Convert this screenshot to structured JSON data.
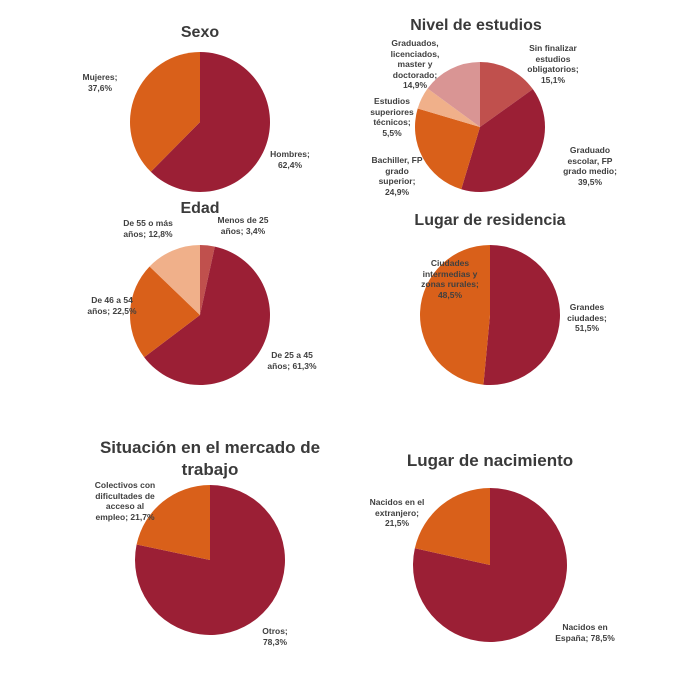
{
  "colors": {
    "dark_red": "#9b1f35",
    "orange": "#d9601a",
    "light_red": "#c0504d",
    "peach": "#f0b08a",
    "pink": "#d99594"
  },
  "chart_data": [
    {
      "type": "pie",
      "title": "Sexo",
      "start": "12 o'clock, clockwise",
      "slices": [
        {
          "label": "Hombres",
          "value": 62.4,
          "text": "Hombres; 62,4%",
          "color": "#9b1f35"
        },
        {
          "label": "Mujeres",
          "value": 37.6,
          "text": "Mujeres; 37,6%",
          "color": "#d9601a"
        }
      ]
    },
    {
      "type": "pie",
      "title": "Nivel de estudios",
      "start": "12 o'clock, clockwise",
      "slices": [
        {
          "label": "Sin finalizar estudios obligatorios",
          "value": 15.1,
          "text": "Sin finalizar estudios obligatorios; 15,1%",
          "color": "#c0504d"
        },
        {
          "label": "Graduado escolar, FP grado medio",
          "value": 39.5,
          "text": "Graduado escolar, FP grado medio; 39,5%",
          "color": "#9b1f35"
        },
        {
          "label": "Bachiller, FP grado superior",
          "value": 24.9,
          "text": "Bachiller, FP grado superior; 24,9%",
          "color": "#d9601a"
        },
        {
          "label": "Estudios superiores técnicos",
          "value": 5.5,
          "text": "Estudios superiores técnicos; 5,5%",
          "color": "#f0b08a"
        },
        {
          "label": "Graduados, licenciados, master y doctorado",
          "value": 14.9,
          "text": "Graduados, licenciados, master y doctorado; 14,9%",
          "color": "#d99594"
        }
      ]
    },
    {
      "type": "pie",
      "title": "Edad",
      "start": "12 o'clock, clockwise",
      "slices": [
        {
          "label": "Menos de 25 años",
          "value": 3.4,
          "text": "Menos de 25 años; 3,4%",
          "color": "#c0504d"
        },
        {
          "label": "De 25 a 45 años",
          "value": 61.3,
          "text": "De 25 a 45 años; 61,3%",
          "color": "#9b1f35"
        },
        {
          "label": "De 46 a 54 años",
          "value": 22.5,
          "text": "De 46 a 54 años; 22,5%",
          "color": "#d9601a"
        },
        {
          "label": "De 55 o más años",
          "value": 12.8,
          "text": "De 55 o más años; 12,8%",
          "color": "#f0b08a"
        }
      ]
    },
    {
      "type": "pie",
      "title": "Lugar de residencia",
      "start": "12 o'clock, clockwise",
      "slices": [
        {
          "label": "Grandes ciudades",
          "value": 51.5,
          "text": "Grandes ciudades; 51,5%",
          "color": "#9b1f35"
        },
        {
          "label": "Ciudades intermedias y zonas rurales",
          "value": 48.5,
          "text": "Ciudades intermedias y zonas rurales; 48,5%",
          "color": "#d9601a"
        }
      ]
    },
    {
      "type": "pie",
      "title": "Situación en el mercado de trabajo",
      "start": "12 o'clock, clockwise",
      "slices": [
        {
          "label": "Otros",
          "value": 78.3,
          "text": "Otros; 78,3%",
          "color": "#9b1f35"
        },
        {
          "label": "Colectivos con dificultades de acceso al empleo",
          "value": 21.7,
          "text": "Colectivos con dificultades de acceso al empleo; 21,7%",
          "color": "#d9601a"
        }
      ]
    },
    {
      "type": "pie",
      "title": "Lugar de nacimiento",
      "start": "12 o'clock, clockwise",
      "slices": [
        {
          "label": "Nacidos en España",
          "value": 78.5,
          "text": "Nacidos en España; 78,5%",
          "color": "#9b1f35"
        },
        {
          "label": "Nacidos en el extranjero",
          "value": 21.5,
          "text": "Nacidos en el extranjero; 21,5%",
          "color": "#d9601a"
        }
      ]
    }
  ]
}
